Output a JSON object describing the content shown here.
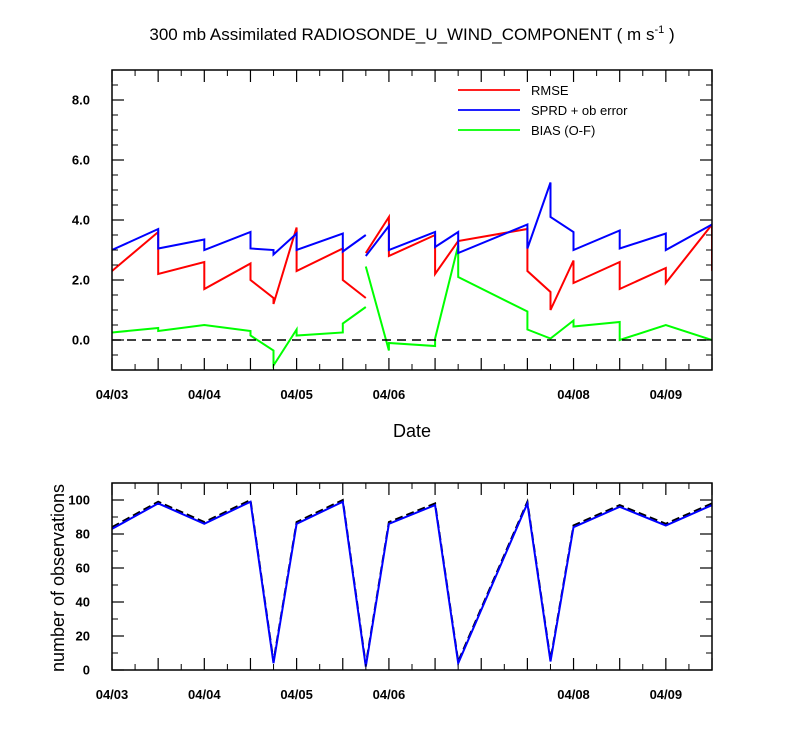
{
  "chart_data": [
    {
      "type": "line",
      "title_main": "300 mb Assimilated RADIOSONDE_U_WIND_COMPONENT ( m s",
      "title_sup": "-1",
      "title_end": " )",
      "xlabel": "Date",
      "ylabel": "",
      "x_unit": "days since 04/03 00Z",
      "xlim": [
        0,
        6.5
      ],
      "ylim": [
        -1,
        9
      ],
      "yticks": [
        0.0,
        2.0,
        4.0,
        6.0,
        8.0
      ],
      "ytick_labels": [
        "0.0",
        "2.0",
        "4.0",
        "6.0",
        "8.0"
      ],
      "xticks": [
        0,
        1,
        2,
        3,
        5,
        6
      ],
      "xtick_labels": [
        "04/03",
        "04/04",
        "04/05",
        "04/06",
        "04/08",
        "04/09"
      ],
      "legend_position": "top-right",
      "reference_line": 0,
      "series": [
        {
          "name": "RMSE",
          "color": "#ff0000",
          "segments": [
            [
              [
                0.0,
                2.3
              ],
              [
                0.5,
                3.6
              ],
              [
                0.5,
                2.2
              ],
              [
                1.0,
                2.6
              ],
              [
                1.0,
                1.7
              ],
              [
                1.5,
                2.55
              ],
              [
                1.5,
                2.0
              ],
              [
                1.75,
                1.4
              ],
              [
                1.75,
                1.2
              ],
              [
                2.0,
                3.75
              ],
              [
                2.0,
                2.3
              ],
              [
                2.5,
                3.05
              ],
              [
                2.5,
                2.0
              ],
              [
                2.75,
                1.4
              ]
            ],
            [
              [
                2.75,
                2.9
              ],
              [
                3.0,
                4.1
              ],
              [
                3.0,
                2.8
              ],
              [
                3.5,
                3.5
              ],
              [
                3.5,
                2.2
              ],
              [
                3.75,
                3.3
              ],
              [
                4.5,
                3.7
              ],
              [
                4.5,
                2.3
              ],
              [
                4.75,
                1.6
              ],
              [
                4.75,
                1.0
              ],
              [
                5.0,
                2.65
              ],
              [
                5.0,
                1.9
              ],
              [
                5.5,
                2.6
              ],
              [
                5.5,
                1.7
              ],
              [
                6.0,
                2.4
              ],
              [
                6.0,
                1.9
              ],
              [
                6.5,
                3.85
              ],
              [
                6.5,
                2.3
              ]
            ]
          ]
        },
        {
          "name": "SPRD + ob error",
          "color": "#0000ff",
          "segments": [
            [
              [
                0.0,
                3.0
              ],
              [
                0.5,
                3.7
              ],
              [
                0.5,
                3.05
              ],
              [
                1.0,
                3.35
              ],
              [
                1.0,
                3.0
              ],
              [
                1.5,
                3.6
              ],
              [
                1.5,
                3.05
              ],
              [
                1.75,
                3.0
              ],
              [
                1.75,
                2.85
              ],
              [
                2.0,
                3.55
              ],
              [
                2.0,
                3.0
              ],
              [
                2.5,
                3.55
              ],
              [
                2.5,
                2.95
              ],
              [
                2.75,
                3.5
              ]
            ],
            [
              [
                2.75,
                2.8
              ],
              [
                3.0,
                3.8
              ],
              [
                3.0,
                3.0
              ],
              [
                3.5,
                3.6
              ],
              [
                3.5,
                3.1
              ],
              [
                3.75,
                3.6
              ],
              [
                3.75,
                2.9
              ],
              [
                4.5,
                3.85
              ],
              [
                4.5,
                3.05
              ],
              [
                4.75,
                5.25
              ],
              [
                4.75,
                4.1
              ],
              [
                5.0,
                3.6
              ],
              [
                5.0,
                3.0
              ],
              [
                5.5,
                3.65
              ],
              [
                5.5,
                3.05
              ],
              [
                6.0,
                3.55
              ],
              [
                6.0,
                3.0
              ],
              [
                6.5,
                3.85
              ]
            ]
          ]
        },
        {
          "name": "BIAS (O-F)",
          "color": "#00ff00",
          "segments": [
            [
              [
                0.0,
                0.25
              ],
              [
                0.5,
                0.4
              ],
              [
                0.5,
                0.3
              ],
              [
                1.0,
                0.5
              ],
              [
                1.5,
                0.3
              ],
              [
                1.5,
                0.15
              ],
              [
                1.75,
                -0.35
              ],
              [
                1.75,
                -0.85
              ],
              [
                2.0,
                0.35
              ],
              [
                2.0,
                0.15
              ],
              [
                2.5,
                0.25
              ],
              [
                2.5,
                0.55
              ],
              [
                2.75,
                1.1
              ]
            ],
            [
              [
                2.75,
                2.45
              ],
              [
                3.0,
                -0.35
              ],
              [
                3.0,
                -0.1
              ],
              [
                3.5,
                -0.2
              ],
              [
                3.5,
                0.05
              ],
              [
                3.75,
                3.15
              ],
              [
                3.75,
                2.1
              ],
              [
                4.5,
                0.95
              ],
              [
                4.5,
                0.35
              ],
              [
                4.75,
                0.05
              ],
              [
                5.0,
                0.65
              ],
              [
                5.0,
                0.45
              ],
              [
                5.5,
                0.6
              ],
              [
                5.5,
                0.0
              ],
              [
                6.0,
                0.5
              ],
              [
                6.5,
                0.0
              ]
            ]
          ]
        }
      ]
    },
    {
      "type": "line",
      "title": "",
      "xlabel": "",
      "ylabel": "number of observations",
      "x_unit": "days since 04/03 00Z",
      "xlim": [
        0,
        6.5
      ],
      "ylim": [
        0,
        110
      ],
      "yticks": [
        0,
        20,
        40,
        60,
        80,
        100
      ],
      "ytick_labels": [
        "0",
        "20",
        "40",
        "60",
        "80",
        "100"
      ],
      "xticks": [
        0,
        1,
        2,
        3,
        5,
        6
      ],
      "xtick_labels": [
        "04/03",
        "04/04",
        "04/05",
        "04/06",
        "04/08",
        "04/09"
      ],
      "series": [
        {
          "name": "",
          "color": "#000000",
          "dashed": true,
          "points": [
            [
              0.0,
              84
            ],
            [
              0.5,
              99
            ],
            [
              1.0,
              87
            ],
            [
              1.5,
              100
            ],
            [
              1.75,
              5
            ],
            [
              2.0,
              87
            ],
            [
              2.5,
              100
            ],
            [
              2.75,
              3
            ],
            [
              3.0,
              87
            ],
            [
              3.5,
              98
            ],
            [
              3.75,
              5
            ],
            [
              4.5,
              99
            ],
            [
              4.75,
              6
            ],
            [
              5.0,
              85
            ],
            [
              5.5,
              97
            ],
            [
              6.0,
              86
            ],
            [
              6.5,
              98
            ]
          ]
        },
        {
          "name": "",
          "color": "#0000ff",
          "dashed": false,
          "points": [
            [
              0.0,
              83
            ],
            [
              0.5,
              98
            ],
            [
              1.0,
              86
            ],
            [
              1.5,
              99
            ],
            [
              1.75,
              4
            ],
            [
              2.0,
              86
            ],
            [
              2.5,
              99
            ],
            [
              2.75,
              2
            ],
            [
              3.0,
              86
            ],
            [
              3.5,
              97
            ],
            [
              3.75,
              4
            ],
            [
              4.5,
              98
            ],
            [
              4.75,
              5
            ],
            [
              5.0,
              84
            ],
            [
              5.5,
              96
            ],
            [
              6.0,
              85
            ],
            [
              6.5,
              97
            ]
          ]
        }
      ]
    }
  ]
}
